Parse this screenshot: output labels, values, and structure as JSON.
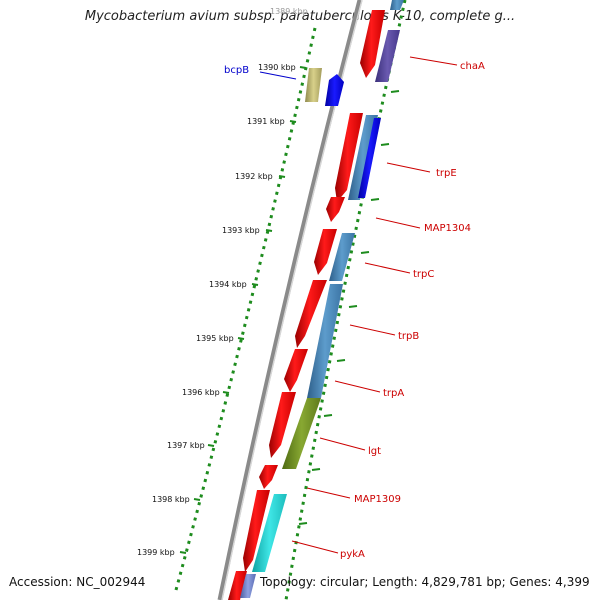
{
  "title": "Mycobacterium avium subsp. paratuberculosis K-10, complete g...",
  "footer": {
    "accession": "Accession: NC_002944",
    "topology": "Topology: circular; Length: 4,829,781 bp; Genes: 4,399"
  },
  "ticks": [
    "1389 kbp",
    "1390 kbp",
    "1391 kbp",
    "1392 kbp",
    "1393 kbp",
    "1394 kbp",
    "1395 kbp",
    "1396 kbp",
    "1397 kbp",
    "1398 kbp",
    "1399 kbp"
  ],
  "gene_labels": [
    {
      "name": "bcpB",
      "color": "#0000cc"
    },
    {
      "name": "chaA",
      "color": "#cc0000"
    },
    {
      "name": "trpE",
      "color": "#cc0000"
    },
    {
      "name": "MAP1304",
      "color": "#cc0000"
    },
    {
      "name": "trpC",
      "color": "#cc0000"
    },
    {
      "name": "trpB",
      "color": "#cc0000"
    },
    {
      "name": "trpA",
      "color": "#cc0000"
    },
    {
      "name": "lgt",
      "color": "#cc0000"
    },
    {
      "name": "MAP1309",
      "color": "#cc0000"
    },
    {
      "name": "pykA",
      "color": "#cc0000"
    }
  ],
  "colors": {
    "cds_forward": "#ff0000",
    "backbone": "#8a8a8a",
    "gc_dots": "#1e8c1e",
    "label_red": "#cc0000",
    "label_blue": "#0000cc"
  }
}
